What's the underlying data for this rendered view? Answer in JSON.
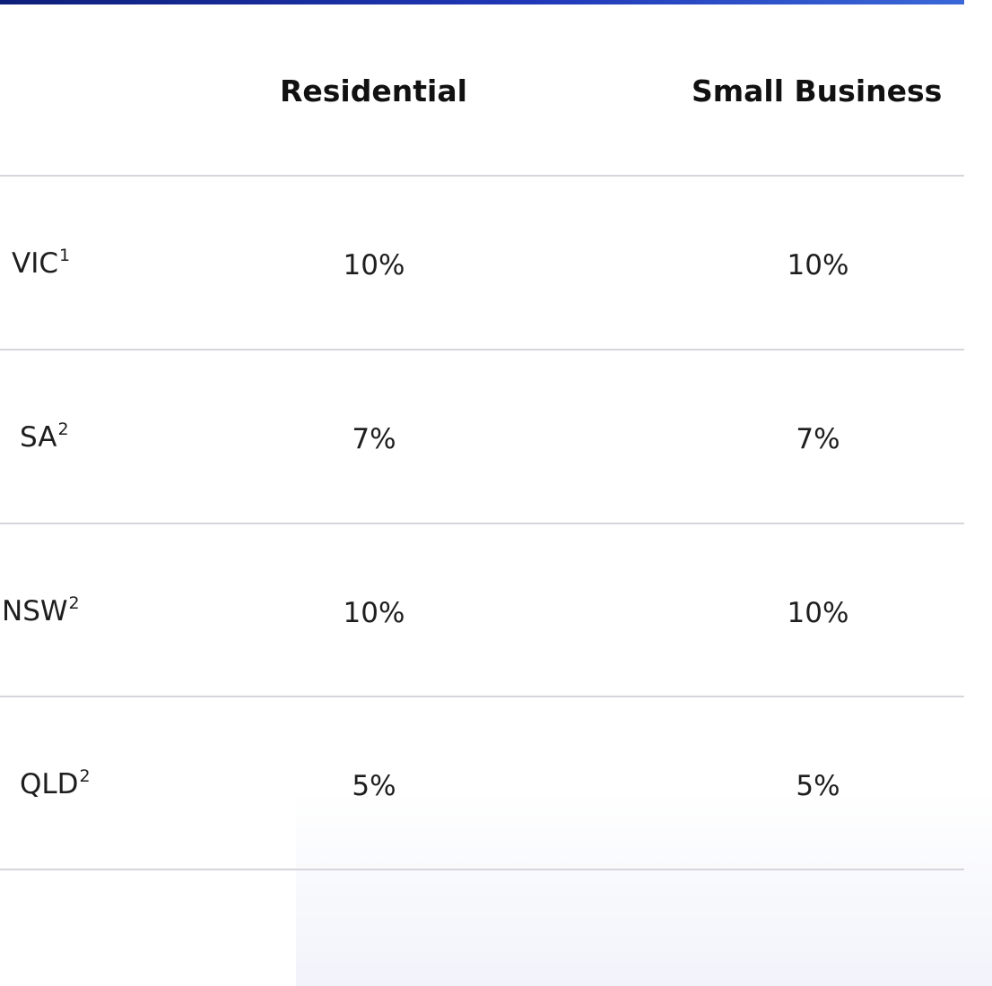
{
  "table": {
    "headers": {
      "state": "",
      "residential": "Residential",
      "small_business": "Small Business"
    },
    "rows": [
      {
        "state": "VIC",
        "footnote": "1",
        "residential": "10%",
        "small_business": "10%"
      },
      {
        "state": "SA",
        "footnote": "2",
        "residential": "7%",
        "small_business": "7%"
      },
      {
        "state": "NSW",
        "footnote": "2",
        "residential": "10%",
        "small_business": "10%"
      },
      {
        "state": "QLD",
        "footnote": "2",
        "residential": "5%",
        "small_business": "5%"
      }
    ]
  },
  "colors": {
    "accent": "#2038b8",
    "rule": "#d6d6dc",
    "text": "#1e1e1e"
  }
}
